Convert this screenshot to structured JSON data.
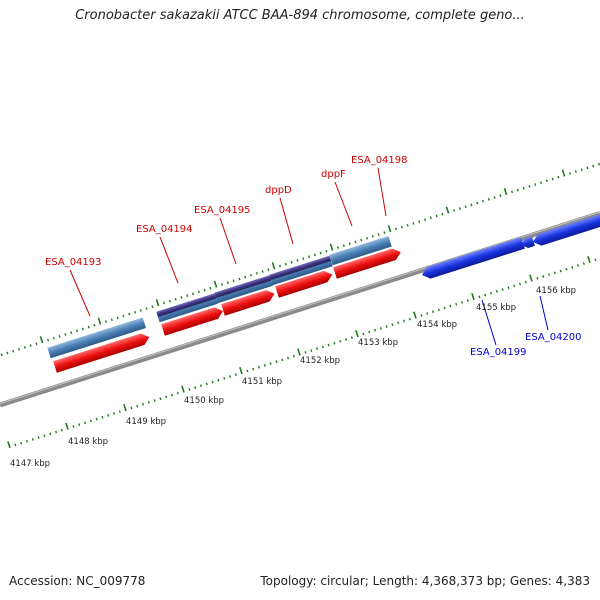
{
  "title": "Cronobacter sakazakii ATCC BAA-894 chromosome, complete geno...",
  "accession": "Accession: NC_009778",
  "topology": "Topology: circular; Length: 4,368,373 bp; Genes: 4,383",
  "colors": {
    "forward_gene_label": "#cc0000",
    "reverse_gene_label": "#0000cc",
    "forward_cds": "#ee1111",
    "reverse_cds": "#1a33dd",
    "gene_bar": "#4a7fb5",
    "operon_bar": "#3d3580",
    "ticks": "#1f7a1f",
    "backbone": "#888888"
  },
  "axis_labels": [
    "4147 kbp",
    "4148 kbp",
    "4149 kbp",
    "4150 kbp",
    "4151 kbp",
    "4152 kbp",
    "4153 kbp",
    "4154 kbp",
    "4155 kbp",
    "4156 kbp"
  ],
  "genes_forward": [
    "ESA_04193",
    "ESA_04194",
    "ESA_04195",
    "dppD",
    "dppF",
    "ESA_04198"
  ],
  "genes_reverse": [
    "ESA_04199",
    "ESA_04200"
  ]
}
